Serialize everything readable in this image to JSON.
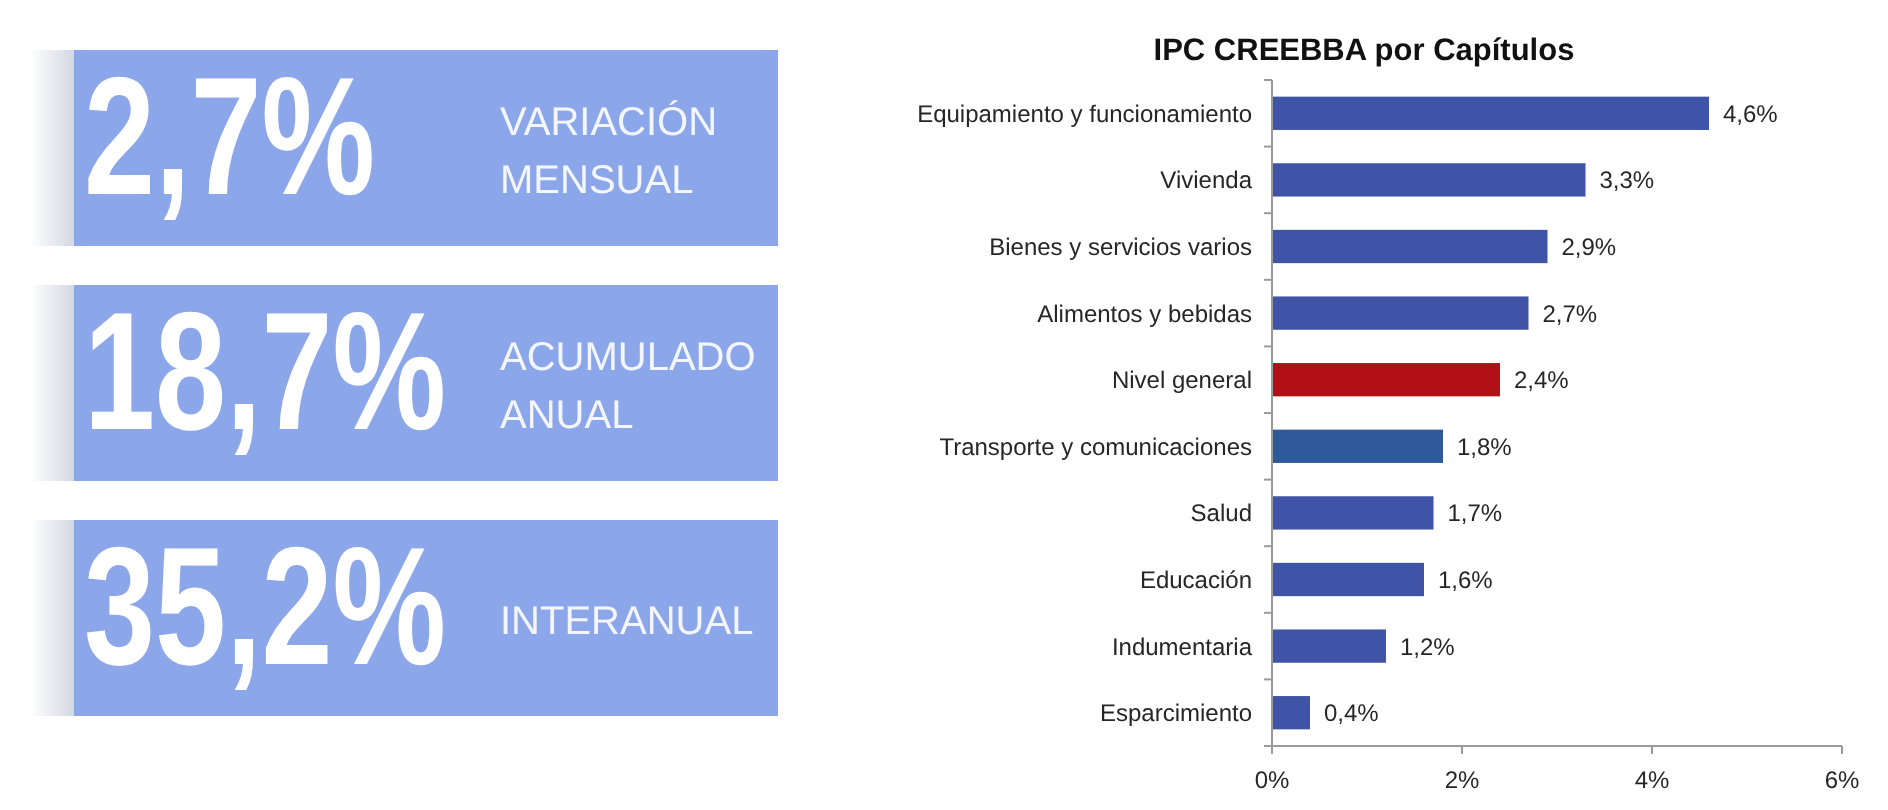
{
  "chart_data": [
    {
      "type": "other",
      "categories": [
        "VARIACIÓN MENSUAL",
        "ACUMULADO ANUAL",
        "INTERANUAL"
      ],
      "value_labels": [
        "2,7%",
        "18,7%",
        "35,2%"
      ],
      "color": "#8ca6ea"
    },
    {
      "type": "bar",
      "orientation": "horizontal",
      "title": "IPC CREEBBA por Capítulos",
      "categories": [
        "Equipamiento y funcionamiento",
        "Vivienda",
        "Bienes y servicios varios",
        "Alimentos y bebidas",
        "Nivel general",
        "Transporte y comunicaciones",
        "Salud",
        "Educación",
        "Indumentaria",
        "Esparcimiento"
      ],
      "values": [
        4.6,
        3.3,
        2.9,
        2.7,
        2.4,
        1.8,
        1.7,
        1.6,
        1.2,
        0.4
      ],
      "colors": [
        "#3f54a6",
        "#3f54a6",
        "#3f54a6",
        "#3f54a6",
        "#b20f17",
        "#2e5a9c",
        "#3f54a6",
        "#3f54a6",
        "#3f54a6",
        "#3f54a6"
      ],
      "value_labels": [
        "4,6%",
        "3,3%",
        "2,9%",
        "2,7%",
        "2,4%",
        "1,8%",
        "1,7%",
        "1,6%",
        "1,2%",
        "0,4%"
      ],
      "xlim": [
        0,
        6
      ],
      "xticks": [
        {
          "value": 0,
          "label": "0%"
        },
        {
          "value": 2,
          "label": "2%"
        },
        {
          "value": 4,
          "label": "4%"
        },
        {
          "value": 6,
          "label": "6%"
        }
      ]
    }
  ]
}
